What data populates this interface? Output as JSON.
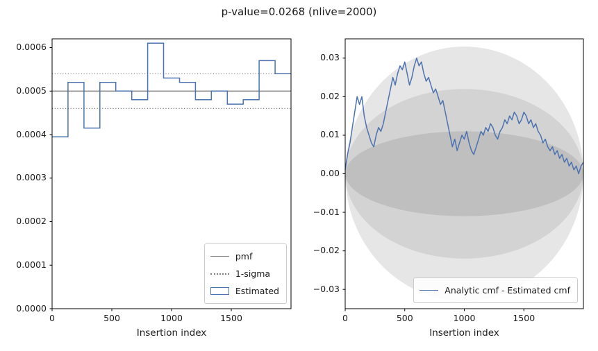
{
  "title": "p-value=0.0268 (nlive=2000)",
  "colors": {
    "blue": "#4c72b0",
    "gray_line": "#7f7f7f",
    "spine": "#000000",
    "band_outer": "#e6e6e6",
    "band_mid": "#d3d3d3",
    "band_inner": "#bfbfbf"
  },
  "chart_data": [
    {
      "type": "bar",
      "subtype": "step-histogram",
      "title": "",
      "xlabel": "Insertion index",
      "ylabel": "",
      "xlim": [
        0,
        2000
      ],
      "ylim": [
        0,
        0.00062
      ],
      "xticks": [
        0,
        500,
        1000,
        1500
      ],
      "yticks": [
        {
          "v": 0.0,
          "label": "0.0000"
        },
        {
          "v": 0.0001,
          "label": "0.0001"
        },
        {
          "v": 0.0002,
          "label": "0.0002"
        },
        {
          "v": 0.0003,
          "label": "0.0003"
        },
        {
          "v": 0.0004,
          "label": "0.0004"
        },
        {
          "v": 0.0005,
          "label": "0.0005"
        },
        {
          "v": 0.0006,
          "label": "0.0006"
        }
      ],
      "pmf": 0.0005,
      "sigma_upper": 0.00054,
      "sigma_lower": 0.00046,
      "bin_count": 15,
      "values": [
        0.000395,
        0.00052,
        0.000415,
        0.00052,
        0.0005,
        0.00048,
        0.00061,
        0.00053,
        0.00052,
        0.00048,
        0.0005,
        0.00047,
        0.00048,
        0.00057,
        0.00054
      ],
      "legend": [
        {
          "label": "pmf",
          "style": "line-solid"
        },
        {
          "label": "1-sigma",
          "style": "line-dotted"
        },
        {
          "label": "Estimated",
          "style": "rect-open"
        }
      ],
      "legend_position": "lower right"
    },
    {
      "type": "line",
      "title": "",
      "xlabel": "Insertion index",
      "ylabel": "",
      "xlim": [
        0,
        2000
      ],
      "ylim": [
        -0.035,
        0.035
      ],
      "xticks": [
        0,
        500,
        1000,
        1500
      ],
      "yticks": [
        {
          "v": -0.03,
          "label": "−0.03"
        },
        {
          "v": -0.02,
          "label": "−0.02"
        },
        {
          "v": -0.01,
          "label": "−0.01"
        },
        {
          "v": 0.0,
          "label": "0.00"
        },
        {
          "v": 0.01,
          "label": "0.01"
        },
        {
          "v": 0.02,
          "label": "0.02"
        },
        {
          "v": 0.03,
          "label": "0.03"
        }
      ],
      "bands": [
        {
          "name": "3-sigma",
          "cx": 1000,
          "rx": 1000,
          "ry": 0.033
        },
        {
          "name": "2-sigma",
          "cx": 1000,
          "rx": 1000,
          "ry": 0.022
        },
        {
          "name": "1-sigma",
          "cx": 1000,
          "rx": 1000,
          "ry": 0.011
        }
      ],
      "series": [
        {
          "name": "Analytic cmf - Estimated cmf",
          "x_step": 20,
          "y": [
            0.001,
            0.005,
            0.008,
            0.012,
            0.016,
            0.02,
            0.018,
            0.02,
            0.015,
            0.012,
            0.01,
            0.008,
            0.007,
            0.01,
            0.012,
            0.011,
            0.013,
            0.016,
            0.019,
            0.022,
            0.025,
            0.023,
            0.026,
            0.028,
            0.027,
            0.029,
            0.026,
            0.023,
            0.025,
            0.028,
            0.03,
            0.028,
            0.029,
            0.026,
            0.024,
            0.025,
            0.023,
            0.021,
            0.022,
            0.02,
            0.018,
            0.019,
            0.016,
            0.013,
            0.01,
            0.007,
            0.009,
            0.006,
            0.008,
            0.01,
            0.009,
            0.011,
            0.008,
            0.006,
            0.005,
            0.007,
            0.009,
            0.011,
            0.01,
            0.012,
            0.011,
            0.013,
            0.012,
            0.01,
            0.009,
            0.011,
            0.012,
            0.014,
            0.013,
            0.015,
            0.014,
            0.016,
            0.015,
            0.013,
            0.014,
            0.016,
            0.015,
            0.013,
            0.014,
            0.012,
            0.013,
            0.011,
            0.01,
            0.008,
            0.009,
            0.007,
            0.006,
            0.007,
            0.005,
            0.006,
            0.004,
            0.005,
            0.003,
            0.004,
            0.002,
            0.003,
            0.001,
            0.002,
            0.0,
            0.002,
            0.003
          ]
        }
      ],
      "legend": [
        {
          "label": "Analytic cmf - Estimated cmf",
          "style": "line-blue"
        }
      ],
      "legend_position": "lower right"
    }
  ]
}
